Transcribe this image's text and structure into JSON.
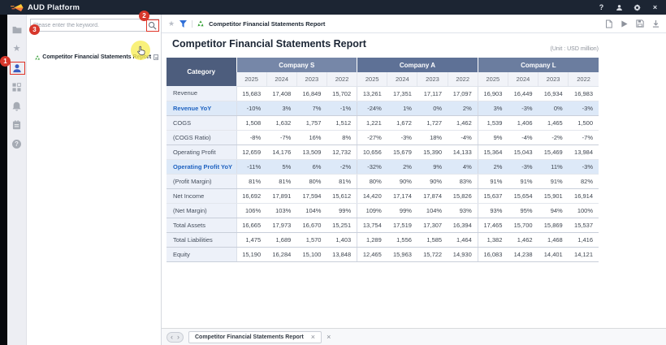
{
  "titlebar": {
    "app_name": "AUD Platform",
    "help_glyph": "?",
    "close_glyph": "×",
    "bg_color": "#1c2533",
    "icons": [
      "help-icon",
      "user-icon",
      "gear-icon",
      "close-icon"
    ]
  },
  "sidebar": {
    "icons": [
      "folder-icon",
      "star-icon",
      "user-icon",
      "modules-icon",
      "bell-icon",
      "schedule-icon",
      "help-icon"
    ],
    "active_icon": "user-icon",
    "active_color": "#3a5ec2"
  },
  "tree": {
    "search_placeholder": "Please enter the keyword.",
    "search_icon": "magnifier-icon",
    "node_label": "Competitor Financial Statements Report",
    "node_icon": "report-icon"
  },
  "pathbar": {
    "title": "Competitor Financial Statements Report",
    "left_icons": [
      "star-icon",
      "filter-icon",
      "report-icon"
    ],
    "action_icons": [
      "document-icon",
      "run-icon",
      "export-icon",
      "download-icon"
    ],
    "filter_color": "#2f6fd8",
    "report_icon_color": "#3aa23a"
  },
  "report": {
    "title": "Competitor Financial Statements Report",
    "unit": "(Unit : USD million)"
  },
  "table": {
    "category_header": "Category",
    "category_bg": "#4d5d7d",
    "companies": [
      "Company S",
      "Company A",
      "Company L"
    ],
    "company_colors": [
      "#7687a8",
      "#5e7196",
      "#6b7d9f"
    ],
    "years": [
      "2025",
      "2024",
      "2023",
      "2022"
    ],
    "yoy_row_bg": "#dde9f8",
    "yoy_label_color": "#1f63c1",
    "rows": [
      {
        "label": "Revenue",
        "style": "normal",
        "group_end": false,
        "values": [
          "15,683",
          "17,408",
          "16,849",
          "15,702",
          "13,261",
          "17,351",
          "17,117",
          "17,097",
          "16,903",
          "16,449",
          "16,934",
          "16,983"
        ]
      },
      {
        "label": "Revenue YoY",
        "style": "yoy",
        "group_end": true,
        "values": [
          "-10%",
          "3%",
          "7%",
          "-1%",
          "-24%",
          "1%",
          "0%",
          "2%",
          "3%",
          "-3%",
          "0%",
          "-3%"
        ]
      },
      {
        "label": "COGS",
        "style": "normal",
        "group_end": false,
        "values": [
          "1,508",
          "1,632",
          "1,757",
          "1,512",
          "1,221",
          "1,672",
          "1,727",
          "1,462",
          "1,539",
          "1,406",
          "1,465",
          "1,500"
        ]
      },
      {
        "label": "(COGS Ratio)",
        "style": "normal",
        "group_end": true,
        "values": [
          "-8%",
          "-7%",
          "16%",
          "8%",
          "-27%",
          "-3%",
          "18%",
          "-4%",
          "9%",
          "-4%",
          "-2%",
          "-7%"
        ]
      },
      {
        "label": "Operating Profit",
        "style": "normal",
        "group_end": false,
        "values": [
          "12,659",
          "14,176",
          "13,509",
          "12,732",
          "10,656",
          "15,679",
          "15,390",
          "14,133",
          "15,364",
          "15,043",
          "15,469",
          "13,984"
        ]
      },
      {
        "label": "Operating Profit YoY",
        "style": "yoy",
        "group_end": false,
        "values": [
          "-11%",
          "5%",
          "6%",
          "-2%",
          "-32%",
          "2%",
          "9%",
          "4%",
          "2%",
          "-3%",
          "11%",
          "-3%"
        ]
      },
      {
        "label": "(Profit Margin)",
        "style": "normal",
        "group_end": true,
        "values": [
          "81%",
          "81%",
          "80%",
          "81%",
          "80%",
          "90%",
          "90%",
          "83%",
          "91%",
          "91%",
          "91%",
          "82%"
        ]
      },
      {
        "label": "Net Income",
        "style": "normal",
        "group_end": false,
        "values": [
          "16,692",
          "17,891",
          "17,594",
          "15,612",
          "14,420",
          "17,174",
          "17,874",
          "15,826",
          "15,637",
          "15,654",
          "15,901",
          "16,914"
        ]
      },
      {
        "label": "(Net Margin)",
        "style": "normal",
        "group_end": true,
        "values": [
          "106%",
          "103%",
          "104%",
          "99%",
          "109%",
          "99%",
          "104%",
          "93%",
          "93%",
          "95%",
          "94%",
          "100%"
        ]
      },
      {
        "label": "Total Assets",
        "style": "normal",
        "group_end": true,
        "values": [
          "16,665",
          "17,973",
          "16,670",
          "15,251",
          "13,754",
          "17,519",
          "17,307",
          "16,394",
          "17,465",
          "15,700",
          "15,869",
          "15,537"
        ]
      },
      {
        "label": "Total Liabilities",
        "style": "normal",
        "group_end": true,
        "values": [
          "1,475",
          "1,689",
          "1,570",
          "1,403",
          "1,289",
          "1,556",
          "1,585",
          "1,464",
          "1,382",
          "1,462",
          "1,468",
          "1,416"
        ]
      },
      {
        "label": "Equity",
        "style": "normal",
        "group_end": true,
        "values": [
          "15,190",
          "16,284",
          "15,100",
          "13,848",
          "12,465",
          "15,963",
          "15,722",
          "14,930",
          "16,083",
          "14,238",
          "14,401",
          "14,121"
        ]
      }
    ]
  },
  "bottom_tabs": {
    "nav_prev": "‹",
    "nav_next": "›",
    "tabs": [
      {
        "label": "Competitor Financial Statements Report",
        "close_glyph": "×"
      }
    ],
    "close_all_glyph": "×"
  },
  "annotations": {
    "marker_color": "#d7372b",
    "highlight_color": "#f7ee5a",
    "badges": [
      {
        "label": "1",
        "target": "sidebar-user-icon"
      },
      {
        "label": "2",
        "target": "search-button"
      },
      {
        "label": "3",
        "target": "tree-node"
      }
    ]
  }
}
